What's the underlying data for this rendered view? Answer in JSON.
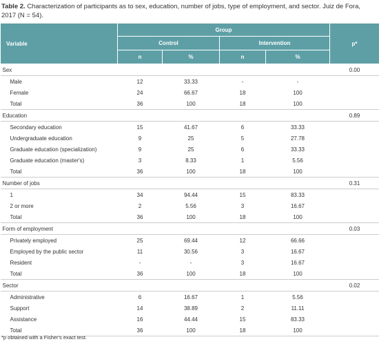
{
  "title": {
    "label": "Table 2.",
    "text": "Characterization of participants as to sex, education, number of jobs, type of employment, and sector. Juiz de Fora, 2017 (N = 54)."
  },
  "header": {
    "variable": "Variable",
    "group": "Group",
    "control": "Control",
    "intervention": "Intervention",
    "p": "p*",
    "subcolumns": [
      "n",
      "%",
      "n",
      "%"
    ]
  },
  "groups": [
    {
      "label": "Sex",
      "p": "0.00",
      "rows": [
        {
          "label": "Male",
          "values": [
            "12",
            "33.33",
            "-",
            "-"
          ]
        },
        {
          "label": "Female",
          "values": [
            "24",
            "66.67",
            "18",
            "100"
          ]
        },
        {
          "label": "Total",
          "values": [
            "36",
            "100",
            "18",
            "100"
          ]
        }
      ]
    },
    {
      "label": "Education",
      "p": "0.89",
      "rows": [
        {
          "label": "Secondary education",
          "values": [
            "15",
            "41.67",
            "6",
            "33.33"
          ]
        },
        {
          "label": "Undergraduate education",
          "values": [
            "9",
            "25",
            "5",
            "27.78"
          ]
        },
        {
          "label": "Graduate education (specialization)",
          "values": [
            "9",
            "25",
            "6",
            "33.33"
          ]
        },
        {
          "label": "Graduate education (master's)",
          "values": [
            "3",
            "8.33",
            "1",
            "5.56"
          ]
        },
        {
          "label": "Total",
          "values": [
            "36",
            "100",
            "18",
            "100"
          ]
        }
      ]
    },
    {
      "label": "Number of jobs",
      "p": "0.31",
      "rows": [
        {
          "label": "1",
          "values": [
            "34",
            "94.44",
            "15",
            "83.33"
          ]
        },
        {
          "label": "2 or more",
          "values": [
            "2",
            "5.56",
            "3",
            "16.67"
          ]
        },
        {
          "label": "Total",
          "values": [
            "36",
            "100",
            "18",
            "100"
          ]
        }
      ]
    },
    {
      "label": "Form of employment",
      "p": "0.03",
      "rows": [
        {
          "label": "Privately employed",
          "values": [
            "25",
            "69.44",
            "12",
            "66.66"
          ]
        },
        {
          "label": "Employed by the public sector",
          "values": [
            "11",
            "30.56",
            "3",
            "16.67"
          ]
        },
        {
          "label": "Resident",
          "values": [
            "-",
            "-",
            "3",
            "16.67"
          ]
        },
        {
          "label": "Total",
          "values": [
            "36",
            "100",
            "18",
            "100"
          ]
        }
      ]
    },
    {
      "label": "Sector",
      "p": "0.02",
      "rows": [
        {
          "label": "Administrative",
          "values": [
            "6",
            "16.67",
            "1",
            "5.56"
          ]
        },
        {
          "label": "Support",
          "values": [
            "14",
            "38.89",
            "2",
            "11.11"
          ]
        },
        {
          "label": "Assistance",
          "values": [
            "16",
            "44.44",
            "15",
            "83.33"
          ]
        },
        {
          "label": "Total",
          "values": [
            "36",
            "100",
            "18",
            "100"
          ]
        }
      ]
    }
  ],
  "footnote": "*p obtained with a Fisher's exact test."
}
